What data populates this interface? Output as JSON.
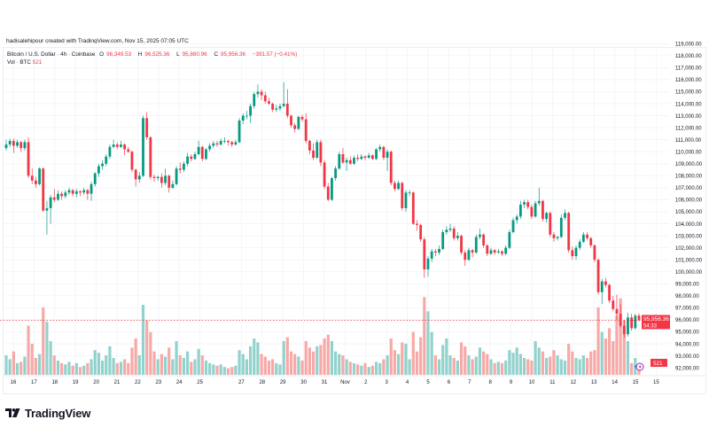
{
  "credit": "hadisalehipour created with TradingView.com, Nov 15, 2025 07:05 UTC",
  "legend": {
    "symbol": "Bitcoin / U.S. Dollar · 4h · Coinbase",
    "o_label": "O",
    "o": "96,349.53",
    "h_label": "H",
    "h": "96,525.36",
    "l_label": "L",
    "l": "95,880.96",
    "c_label": "C",
    "c": "95,956.36",
    "change": "−391.57 (−0.41%)",
    "vol_label": "Vol · BTC",
    "vol": "521"
  },
  "price_label": {
    "price": "95,956.36",
    "countdown": "54:33"
  },
  "vol_axis_label": "521",
  "brand": "TradingView",
  "colors": {
    "up": "#089981",
    "down": "#f23645",
    "vol_up": "#92d2cc",
    "vol_down": "#f7a9a7",
    "grid": "#f0f3fa"
  },
  "chart_data": {
    "type": "candlestick",
    "interval": "4h",
    "units": "USD",
    "ylim": [
      92000,
      119000
    ],
    "grid": true,
    "y_ticks": [
      "92,000.00",
      "93,000.00",
      "94,000.00",
      "95,000.00",
      "96,000.00",
      "97,000.00",
      "98,000.00",
      "99,000.00",
      "100,000.00",
      "101,000.00",
      "102,000.00",
      "103,000.00",
      "104,000.00",
      "105,000.00",
      "106,000.00",
      "107,000.00",
      "108,000.00",
      "109,000.00",
      "110,000.00",
      "111,000.00",
      "112,000.00",
      "113,000.00",
      "114,000.00",
      "115,000.00",
      "116,000.00",
      "117,000.00",
      "118,000.00",
      "119,000.00"
    ],
    "x_ticks": [
      "16",
      "17",
      "18",
      "19",
      "20",
      "21",
      "22",
      "23",
      "24",
      "25",
      "27",
      "28",
      "29",
      "30",
      "31",
      "Nov",
      "2",
      "3",
      "4",
      "5",
      "6",
      "7",
      "8",
      "9",
      "10",
      "11",
      "12",
      "13",
      "14",
      "15",
      "15"
    ],
    "ohlc_thousands": [
      [
        110.3,
        111.0,
        110.1,
        110.6
      ],
      [
        110.6,
        111.1,
        110.4,
        110.9
      ],
      [
        110.9,
        111.1,
        109.9,
        110.5
      ],
      [
        110.5,
        111.0,
        110.3,
        110.8
      ],
      [
        110.8,
        110.9,
        110.0,
        110.3
      ],
      [
        110.3,
        111.0,
        110.1,
        110.8
      ],
      [
        110.8,
        111.2,
        107.8,
        108.0
      ],
      [
        108.0,
        108.6,
        107.3,
        107.6
      ],
      [
        107.6,
        107.9,
        107.0,
        107.3
      ],
      [
        107.3,
        108.7,
        107.2,
        108.6
      ],
      [
        108.6,
        108.7,
        105.0,
        105.1
      ],
      [
        105.1,
        105.9,
        103.1,
        105.3
      ],
      [
        105.3,
        106.4,
        104.0,
        106.2
      ],
      [
        106.2,
        106.9,
        105.8,
        106.0
      ],
      [
        106.0,
        106.8,
        105.9,
        106.5
      ],
      [
        106.5,
        106.7,
        106.0,
        106.3
      ],
      [
        106.3,
        106.8,
        106.1,
        106.6
      ],
      [
        106.6,
        107.0,
        106.4,
        106.8
      ],
      [
        106.8,
        106.9,
        106.3,
        106.5
      ],
      [
        106.5,
        106.9,
        106.2,
        106.7
      ],
      [
        106.7,
        106.8,
        106.3,
        106.6
      ],
      [
        106.6,
        107.0,
        106.4,
        106.8
      ],
      [
        106.8,
        106.9,
        106.0,
        106.5
      ],
      [
        106.5,
        107.5,
        105.9,
        107.3
      ],
      [
        107.3,
        108.3,
        107.1,
        108.2
      ],
      [
        108.2,
        109.0,
        107.9,
        108.8
      ],
      [
        108.8,
        109.3,
        108.5,
        109.0
      ],
      [
        109.0,
        109.8,
        108.8,
        109.6
      ],
      [
        109.6,
        110.6,
        109.4,
        110.4
      ],
      [
        110.4,
        111.0,
        110.3,
        110.6
      ],
      [
        110.6,
        110.8,
        110.2,
        110.4
      ],
      [
        110.4,
        110.9,
        110.3,
        110.6
      ],
      [
        110.6,
        110.7,
        109.7,
        110.2
      ],
      [
        110.2,
        110.4,
        109.9,
        110.0
      ],
      [
        110.0,
        110.1,
        108.3,
        108.5
      ],
      [
        108.5,
        108.6,
        107.1,
        107.7
      ],
      [
        107.7,
        108.3,
        107.4,
        108.0
      ],
      [
        108.0,
        113.0,
        107.9,
        112.8
      ],
      [
        112.8,
        113.3,
        111.0,
        111.2
      ],
      [
        111.2,
        111.3,
        107.7,
        107.9
      ],
      [
        107.9,
        108.1,
        107.5,
        107.8
      ],
      [
        107.8,
        108.0,
        107.6,
        107.9
      ],
      [
        107.9,
        108.2,
        107.0,
        107.4
      ],
      [
        107.4,
        108.6,
        107.2,
        108.0
      ],
      [
        108.0,
        108.1,
        106.6,
        107.0
      ],
      [
        107.0,
        107.6,
        106.9,
        107.3
      ],
      [
        107.3,
        108.8,
        107.2,
        108.6
      ],
      [
        108.6,
        109.1,
        108.2,
        108.5
      ],
      [
        108.5,
        109.2,
        108.3,
        109.0
      ],
      [
        109.0,
        109.9,
        108.8,
        109.6
      ],
      [
        109.6,
        109.8,
        109.2,
        109.4
      ],
      [
        109.4,
        110.0,
        109.3,
        109.8
      ],
      [
        109.8,
        110.9,
        109.7,
        110.4
      ],
      [
        110.4,
        110.5,
        109.2,
        109.4
      ],
      [
        109.4,
        110.3,
        109.3,
        110.2
      ],
      [
        110.2,
        110.7,
        110.0,
        110.5
      ],
      [
        110.5,
        110.9,
        110.3,
        110.7
      ],
      [
        110.7,
        110.9,
        110.4,
        110.6
      ],
      [
        110.6,
        111.1,
        110.5,
        110.9
      ],
      [
        110.9,
        111.2,
        110.7,
        110.9
      ],
      [
        110.9,
        111.0,
        110.5,
        110.8
      ],
      [
        110.8,
        110.9,
        110.4,
        110.6
      ],
      [
        110.6,
        111.0,
        110.5,
        110.8
      ],
      [
        110.8,
        112.8,
        110.7,
        112.6
      ],
      [
        112.6,
        113.2,
        112.3,
        113.0
      ],
      [
        113.0,
        113.4,
        112.7,
        113.0
      ],
      [
        113.0,
        114.0,
        112.4,
        113.8
      ],
      [
        113.8,
        115.0,
        113.6,
        114.8
      ],
      [
        114.8,
        115.6,
        114.5,
        115.0
      ],
      [
        115.0,
        115.2,
        114.3,
        114.7
      ],
      [
        114.7,
        115.0,
        114.0,
        114.2
      ],
      [
        114.2,
        114.5,
        113.9,
        114.0
      ],
      [
        114.0,
        114.1,
        113.3,
        113.5
      ],
      [
        113.5,
        113.9,
        113.3,
        113.6
      ],
      [
        113.6,
        114.0,
        113.4,
        113.8
      ],
      [
        113.8,
        115.8,
        113.7,
        114.0
      ],
      [
        114.0,
        115.2,
        112.8,
        113.0
      ],
      [
        113.0,
        113.1,
        112.0,
        112.2
      ],
      [
        112.2,
        112.4,
        111.6,
        111.9
      ],
      [
        111.9,
        113.0,
        111.8,
        112.9
      ],
      [
        112.9,
        113.1,
        112.5,
        112.7
      ],
      [
        112.7,
        113.2,
        110.7,
        110.9
      ],
      [
        110.9,
        111.0,
        109.8,
        110.1
      ],
      [
        110.1,
        110.7,
        109.3,
        109.5
      ],
      [
        109.5,
        111.0,
        109.4,
        110.8
      ],
      [
        110.8,
        111.0,
        108.8,
        109.1
      ],
      [
        109.1,
        109.3,
        106.9,
        107.1
      ],
      [
        107.1,
        107.4,
        105.9,
        106.0
      ],
      [
        106.0,
        107.9,
        105.9,
        107.8
      ],
      [
        107.8,
        108.8,
        107.6,
        108.6
      ],
      [
        108.6,
        110.0,
        108.5,
        109.8
      ],
      [
        109.8,
        110.3,
        109.0,
        109.1
      ],
      [
        109.1,
        109.5,
        108.4,
        109.3
      ],
      [
        109.3,
        109.6,
        108.9,
        109.0
      ],
      [
        109.0,
        109.7,
        108.9,
        109.5
      ],
      [
        109.5,
        109.8,
        109.2,
        109.4
      ],
      [
        109.4,
        109.8,
        109.3,
        109.6
      ],
      [
        109.6,
        109.7,
        109.3,
        109.5
      ],
      [
        109.5,
        109.9,
        109.4,
        109.7
      ],
      [
        109.7,
        109.8,
        109.3,
        109.4
      ],
      [
        109.4,
        110.3,
        109.3,
        110.2
      ],
      [
        110.2,
        110.6,
        110.0,
        110.4
      ],
      [
        110.4,
        110.5,
        109.3,
        109.5
      ],
      [
        109.5,
        110.2,
        108.4,
        110.0
      ],
      [
        110.0,
        110.1,
        107.2,
        107.4
      ],
      [
        107.4,
        107.6,
        106.7,
        106.9
      ],
      [
        106.9,
        107.6,
        106.8,
        107.4
      ],
      [
        107.4,
        107.5,
        105.1,
        105.3
      ],
      [
        105.3,
        106.8,
        105.0,
        106.6
      ],
      [
        106.6,
        106.8,
        106.3,
        106.6
      ],
      [
        106.6,
        106.7,
        103.9,
        104.0
      ],
      [
        104.0,
        104.3,
        103.4,
        103.9
      ],
      [
        103.9,
        104.0,
        102.5,
        102.7
      ],
      [
        102.7,
        102.9,
        99.5,
        100.2
      ],
      [
        100.2,
        101.3,
        99.6,
        101.1
      ],
      [
        101.1,
        101.9,
        100.8,
        101.7
      ],
      [
        101.7,
        101.9,
        101.3,
        101.6
      ],
      [
        101.6,
        102.2,
        101.4,
        101.9
      ],
      [
        101.9,
        103.5,
        101.8,
        103.3
      ],
      [
        103.3,
        103.8,
        103.1,
        103.5
      ],
      [
        103.5,
        104.0,
        103.3,
        103.6
      ],
      [
        103.6,
        103.8,
        102.6,
        102.8
      ],
      [
        102.8,
        103.3,
        102.6,
        103.0
      ],
      [
        103.0,
        103.1,
        101.4,
        101.6
      ],
      [
        101.6,
        101.8,
        100.5,
        101.0
      ],
      [
        101.0,
        102.0,
        100.9,
        101.8
      ],
      [
        101.8,
        101.9,
        101.2,
        101.6
      ],
      [
        101.6,
        103.1,
        101.5,
        102.9
      ],
      [
        102.9,
        103.6,
        102.7,
        103.1
      ],
      [
        103.1,
        103.2,
        102.0,
        102.2
      ],
      [
        102.2,
        102.3,
        101.3,
        101.5
      ],
      [
        101.5,
        102.0,
        101.4,
        101.8
      ],
      [
        101.8,
        101.9,
        101.4,
        101.6
      ],
      [
        101.6,
        101.9,
        101.5,
        101.7
      ],
      [
        101.7,
        101.8,
        101.3,
        101.5
      ],
      [
        101.5,
        102.2,
        101.4,
        102.0
      ],
      [
        102.0,
        103.5,
        101.9,
        103.3
      ],
      [
        103.3,
        104.5,
        103.2,
        104.3
      ],
      [
        104.3,
        104.8,
        104.0,
        104.6
      ],
      [
        104.6,
        105.9,
        104.4,
        105.6
      ],
      [
        105.6,
        106.0,
        105.3,
        105.8
      ],
      [
        105.8,
        106.0,
        105.2,
        105.4
      ],
      [
        105.4,
        105.6,
        104.4,
        104.6
      ],
      [
        104.6,
        105.9,
        104.5,
        105.7
      ],
      [
        105.7,
        107.0,
        105.5,
        105.9
      ],
      [
        105.9,
        106.0,
        104.2,
        104.4
      ],
      [
        104.4,
        105.0,
        104.1,
        104.9
      ],
      [
        104.9,
        105.0,
        102.9,
        103.1
      ],
      [
        103.1,
        103.3,
        102.5,
        102.8
      ],
      [
        102.8,
        103.0,
        102.6,
        102.9
      ],
      [
        102.9,
        104.8,
        102.8,
        104.5
      ],
      [
        104.5,
        105.2,
        104.3,
        104.9
      ],
      [
        104.9,
        105.0,
        101.6,
        101.8
      ],
      [
        101.8,
        102.1,
        101.0,
        101.3
      ],
      [
        101.3,
        102.2,
        101.0,
        102.0
      ],
      [
        102.0,
        102.7,
        101.8,
        102.5
      ],
      [
        102.5,
        103.3,
        102.4,
        103.1
      ],
      [
        103.1,
        103.3,
        102.6,
        102.8
      ],
      [
        102.8,
        102.9,
        102.0,
        102.2
      ],
      [
        102.2,
        102.3,
        100.8,
        101.0
      ],
      [
        101.0,
        101.1,
        98.1,
        98.3
      ],
      [
        98.3,
        99.4,
        97.3,
        99.2
      ],
      [
        99.2,
        99.5,
        98.7,
        98.9
      ],
      [
        98.9,
        99.0,
        97.4,
        97.6
      ],
      [
        97.6,
        98.0,
        96.7,
        96.9
      ],
      [
        96.9,
        98.1,
        96.0,
        96.5
      ],
      [
        96.5,
        97.3,
        95.3,
        95.5
      ],
      [
        95.5,
        96.0,
        94.5,
        94.8
      ],
      [
        94.8,
        96.6,
        94.6,
        96.2
      ],
      [
        96.2,
        96.5,
        95.1,
        95.3
      ],
      [
        95.3,
        96.5,
        95.2,
        96.35
      ],
      [
        96.35,
        96.53,
        95.88,
        95.96
      ]
    ],
    "volume_btc": [
      1500,
      1200,
      1800,
      900,
      1000,
      1400,
      3800,
      2400,
      1300,
      1600,
      5200,
      4100,
      2600,
      1500,
      1100,
      900,
      800,
      1000,
      700,
      900,
      600,
      700,
      900,
      1200,
      1900,
      1700,
      1100,
      1500,
      2200,
      1300,
      900,
      1000,
      1200,
      900,
      2100,
      2800,
      1500,
      5400,
      4200,
      3300,
      1800,
      1200,
      1600,
      1400,
      2100,
      1200,
      2600,
      1500,
      1300,
      1800,
      1000,
      1200,
      2000,
      1500,
      1100,
      900,
      800,
      700,
      800,
      600,
      500,
      600,
      700,
      1900,
      1600,
      1200,
      2200,
      2800,
      2500,
      1600,
      1400,
      1100,
      1200,
      900,
      800,
      2600,
      2900,
      1800,
      1600,
      1400,
      1100,
      2600,
      2100,
      1800,
      2200,
      2300,
      2800,
      3100,
      2600,
      1800,
      1600,
      1500,
      1200,
      1000,
      900,
      800,
      700,
      900,
      600,
      700,
      1000,
      900,
      1200,
      1500,
      2800,
      1900,
      1600,
      2500,
      2400,
      1200,
      3300,
      1800,
      2900,
      6000,
      4900,
      3300,
      1500,
      1200,
      2300,
      2800,
      1500,
      1300,
      1100,
      2500,
      2200,
      1500,
      1200,
      1400,
      2100,
      1800,
      1600,
      1200,
      900,
      1000,
      900,
      1100,
      1900,
      1700,
      2100,
      1600,
      1300,
      1200,
      1100,
      2600,
      2100,
      1800,
      1300,
      1400,
      1900,
      1500,
      1200,
      1100,
      2400,
      1800,
      1300,
      1200,
      1500,
      1300,
      1800,
      1900,
      5200,
      3300,
      2800,
      3600,
      2600,
      4600,
      5900,
      4200,
      2600,
      900,
      1300,
      521
    ]
  }
}
